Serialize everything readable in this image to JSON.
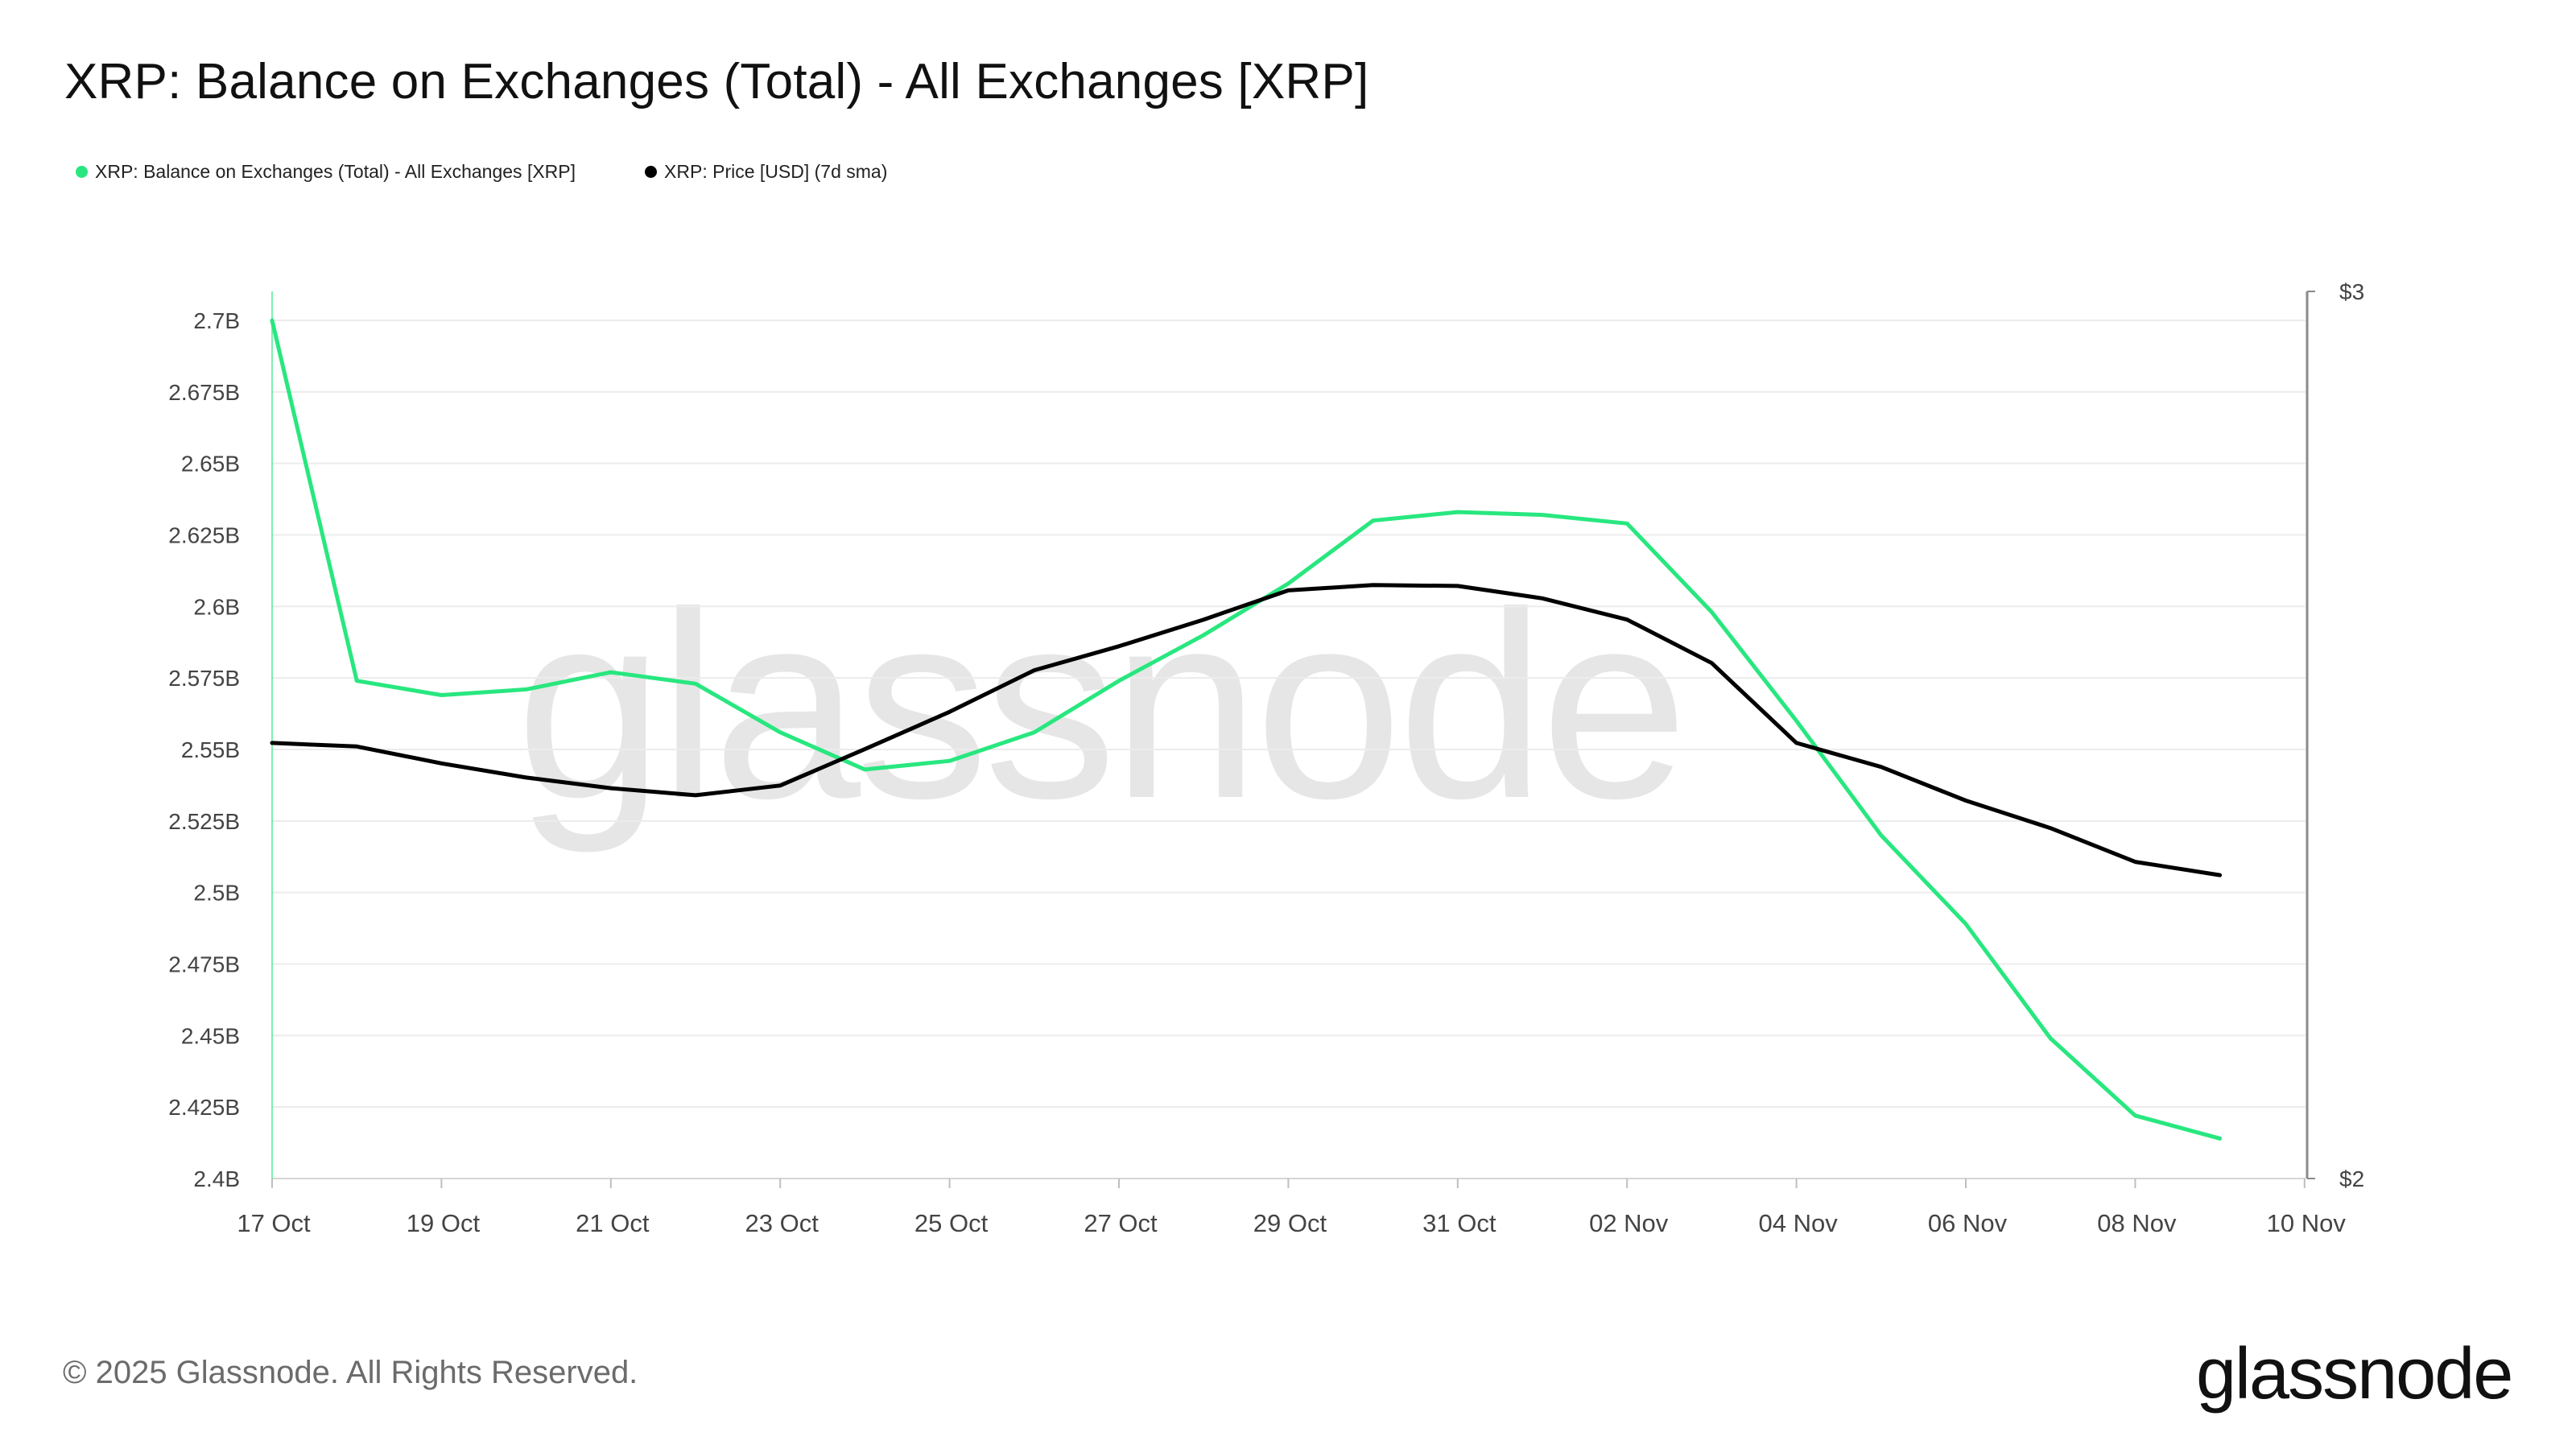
{
  "title": "XRP: Balance on Exchanges (Total) - All Exchanges [XRP]",
  "legend": [
    {
      "label": "XRP: Balance on Exchanges (Total) - All Exchanges [XRP]",
      "color": "#28e77f"
    },
    {
      "label": "XRP: Price [USD] (7d sma)",
      "color": "#000000"
    }
  ],
  "watermark": "glassnode",
  "footer": {
    "copyright": "© 2025 Glassnode. All Rights Reserved.",
    "logo": "glassnode"
  },
  "chart_data": {
    "type": "line",
    "x": [
      "17 Oct",
      "18 Oct",
      "19 Oct",
      "20 Oct",
      "21 Oct",
      "22 Oct",
      "23 Oct",
      "24 Oct",
      "25 Oct",
      "26 Oct",
      "27 Oct",
      "28 Oct",
      "29 Oct",
      "30 Oct",
      "31 Oct",
      "01 Nov",
      "02 Nov",
      "03 Nov",
      "04 Nov",
      "05 Nov",
      "06 Nov",
      "07 Nov",
      "08 Nov",
      "09 Nov"
    ],
    "x_ticks": [
      "17 Oct",
      "19 Oct",
      "21 Oct",
      "23 Oct",
      "25 Oct",
      "27 Oct",
      "29 Oct",
      "31 Oct",
      "02 Nov",
      "04 Nov",
      "06 Nov",
      "08 Nov",
      "10 Nov"
    ],
    "series": [
      {
        "name": "XRP: Balance on Exchanges (Total) - All Exchanges [XRP]",
        "axis": "left",
        "color": "#28e77f",
        "values": [
          2.7,
          2.574,
          2.569,
          2.571,
          2.577,
          2.573,
          2.556,
          2.543,
          2.546,
          2.556,
          2.574,
          2.59,
          2.608,
          2.63,
          2.633,
          2.632,
          2.629,
          2.598,
          2.56,
          2.52,
          2.489,
          2.449,
          2.422,
          2.414
        ]
      },
      {
        "name": "XRP: Price [USD] (7d sma)",
        "axis": "right",
        "color": "#000000",
        "values": [
          2.491,
          2.487,
          2.468,
          2.452,
          2.44,
          2.432,
          2.443,
          2.484,
          2.526,
          2.573,
          2.6,
          2.63,
          2.663,
          2.669,
          2.668,
          2.654,
          2.63,
          2.581,
          2.491,
          2.464,
          2.426,
          2.395,
          2.357,
          2.342
        ]
      }
    ],
    "left_axis": {
      "ylim": [
        2.4,
        2.7
      ],
      "ticks": [
        {
          "value": 2.7,
          "label": "2.7B"
        },
        {
          "value": 2.675,
          "label": "2.675B"
        },
        {
          "value": 2.65,
          "label": "2.65B"
        },
        {
          "value": 2.625,
          "label": "2.625B"
        },
        {
          "value": 2.6,
          "label": "2.6B"
        },
        {
          "value": 2.575,
          "label": "2.575B"
        },
        {
          "value": 2.55,
          "label": "2.55B"
        },
        {
          "value": 2.525,
          "label": "2.525B"
        },
        {
          "value": 2.5,
          "label": "2.5B"
        },
        {
          "value": 2.475,
          "label": "2.475B"
        },
        {
          "value": 2.45,
          "label": "2.45B"
        },
        {
          "value": 2.425,
          "label": "2.425B"
        },
        {
          "value": 2.4,
          "label": "2.4B"
        }
      ]
    },
    "right_axis": {
      "ylim": [
        2,
        3
      ],
      "ticks": [
        {
          "value": 3,
          "label": "$3"
        },
        {
          "value": 2,
          "label": "$2"
        }
      ]
    },
    "grid": true,
    "legend_position": "top-left"
  }
}
